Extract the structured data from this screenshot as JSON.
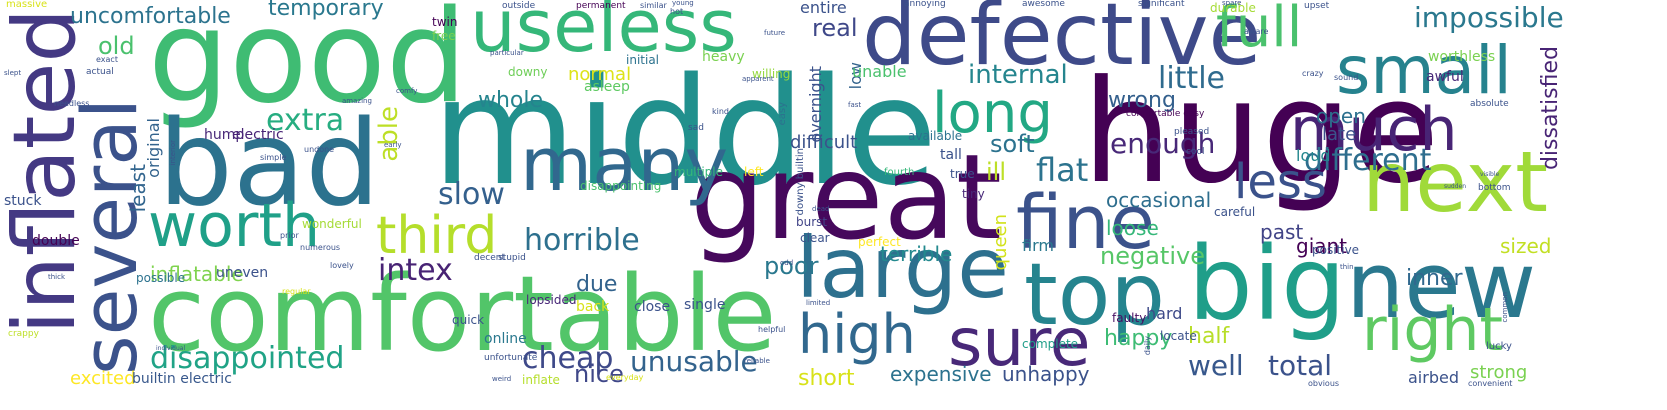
{
  "words": [
    {
      "text": "middle",
      "color": "#21908d"
    },
    {
      "text": "huge",
      "color": "#440154"
    },
    {
      "text": "good",
      "color": "#3fbc73"
    },
    {
      "text": "bad",
      "color": "#2c728e"
    },
    {
      "text": "great",
      "color": "#46085c"
    },
    {
      "text": "comfortable",
      "color": "#52c569"
    },
    {
      "text": "defective",
      "color": "#3e4a89"
    },
    {
      "text": "big",
      "color": "#1f9e89"
    },
    {
      "text": "new",
      "color": "#2a788e"
    },
    {
      "text": "top",
      "color": "#25848e"
    },
    {
      "text": "next",
      "color": "#a0da39"
    },
    {
      "text": "large",
      "color": "#2d708e"
    },
    {
      "text": "inflated",
      "color": "#443983"
    },
    {
      "text": "several",
      "color": "#3b528b"
    },
    {
      "text": "useless",
      "color": "#35b779"
    },
    {
      "text": "many",
      "color": "#31688e"
    },
    {
      "text": "fine",
      "color": "#3b528b"
    },
    {
      "text": "sure",
      "color": "#482878"
    },
    {
      "text": "small",
      "color": "#26828e"
    },
    {
      "text": "much",
      "color": "#482475"
    },
    {
      "text": "worth",
      "color": "#1fa088"
    },
    {
      "text": "long",
      "color": "#22a884"
    },
    {
      "text": "right",
      "color": "#5ec962"
    },
    {
      "text": "full",
      "color": "#4ac16d"
    },
    {
      "text": "high",
      "color": "#31688e"
    },
    {
      "text": "third",
      "color": "#b5de2b"
    },
    {
      "text": "less",
      "color": "#3b528b"
    },
    {
      "text": "disappointed",
      "color": "#20a386"
    },
    {
      "text": "horrible",
      "color": "#2d708e"
    },
    {
      "text": "different",
      "color": "#2e6e8e"
    },
    {
      "text": "cheap",
      "color": "#3e4989"
    },
    {
      "text": "unusable",
      "color": "#33638d"
    },
    {
      "text": "impossible",
      "color": "#2a788e"
    },
    {
      "text": "extra",
      "color": "#27ad81"
    },
    {
      "text": "flat",
      "color": "#2c738e"
    },
    {
      "text": "intex",
      "color": "#482374"
    },
    {
      "text": "total",
      "color": "#3b528b"
    },
    {
      "text": "well",
      "color": "#38588c"
    },
    {
      "text": "enough",
      "color": "#482878"
    },
    {
      "text": "internal",
      "color": "#25858e"
    },
    {
      "text": "little",
      "color": "#2f6b8e"
    },
    {
      "text": "uncomfortable",
      "color": "#2c738e"
    },
    {
      "text": "temporary",
      "color": "#2a788e"
    },
    {
      "text": "able",
      "color": "#bddf26"
    },
    {
      "text": "slow",
      "color": "#34608d"
    },
    {
      "text": "old",
      "color": "#4ac16d"
    },
    {
      "text": "real",
      "color": "#3f4889"
    },
    {
      "text": "soft",
      "color": "#2c728e"
    },
    {
      "text": "negative",
      "color": "#56c667"
    },
    {
      "text": "nice",
      "color": "#3f4788"
    },
    {
      "text": "poor",
      "color": "#2a788e"
    },
    {
      "text": "happy",
      "color": "#3dbc74"
    },
    {
      "text": "half",
      "color": "#b8de29"
    },
    {
      "text": "dissatisfied",
      "color": "#482475"
    },
    {
      "text": "wrong",
      "color": "#34608d"
    },
    {
      "text": "whole",
      "color": "#25848e"
    },
    {
      "text": "due",
      "color": "#33638d"
    },
    {
      "text": "inner",
      "color": "#31688e"
    },
    {
      "text": "short",
      "color": "#d8e219"
    },
    {
      "text": "expensive",
      "color": "#2c728e"
    },
    {
      "text": "unhappy",
      "color": "#3b528b"
    },
    {
      "text": "strong",
      "color": "#7ad151"
    },
    {
      "text": "excited",
      "color": "#fde725"
    },
    {
      "text": "sized",
      "color": "#c2df23"
    },
    {
      "text": "normal",
      "color": "#dde318"
    },
    {
      "text": "occasional",
      "color": "#2e6e8e"
    },
    {
      "text": "least",
      "color": "#32658e"
    },
    {
      "text": "inflatable",
      "color": "#7fd34e"
    },
    {
      "text": "loose",
      "color": "#35b779"
    },
    {
      "text": "past",
      "color": "#414487"
    },
    {
      "text": "giant",
      "color": "#440154"
    },
    {
      "text": "open",
      "color": "#2d708e"
    },
    {
      "text": "late",
      "color": "#3b528b"
    },
    {
      "text": "ill",
      "color": "#bddf26"
    },
    {
      "text": "queen",
      "color": "#d2e21b"
    },
    {
      "text": "terrible",
      "color": "#23898e"
    },
    {
      "text": "difficult",
      "color": "#3b528b"
    },
    {
      "text": "low",
      "color": "#33638d"
    },
    {
      "text": "unable",
      "color": "#4ac16d"
    },
    {
      "text": "overnight",
      "color": "#3b528b"
    },
    {
      "text": "loud",
      "color": "#24878e"
    },
    {
      "text": "firm",
      "color": "#2a788e"
    },
    {
      "text": "tall",
      "color": "#3b528b"
    },
    {
      "text": "hard",
      "color": "#3e4a89"
    },
    {
      "text": "faulty",
      "color": "#471063"
    },
    {
      "text": "airbed",
      "color": "#3b528b"
    },
    {
      "text": "entire",
      "color": "#3b528b"
    },
    {
      "text": "multiple",
      "color": "#35b779"
    },
    {
      "text": "left",
      "color": "#fde725"
    },
    {
      "text": "original",
      "color": "#33638d"
    },
    {
      "text": "hump",
      "color": "#482878"
    },
    {
      "text": "electric",
      "color": "#482475"
    },
    {
      "text": "builtin electric",
      "color": "#38588c"
    },
    {
      "text": "uneven",
      "color": "#3b528b"
    },
    {
      "text": "possible",
      "color": "#2c728e"
    },
    {
      "text": "double",
      "color": "#440154"
    },
    {
      "text": "stuck",
      "color": "#3b528b"
    },
    {
      "text": "wonderful",
      "color": "#a5db36"
    },
    {
      "text": "lopsided",
      "color": "#482878"
    },
    {
      "text": "back",
      "color": "#d8e219"
    },
    {
      "text": "close",
      "color": "#3b528b"
    },
    {
      "text": "single",
      "color": "#3b528b"
    },
    {
      "text": "online",
      "color": "#2a788e"
    },
    {
      "text": "quick",
      "color": "#3b528b"
    },
    {
      "text": "inflate",
      "color": "#b5de2b"
    },
    {
      "text": "complete",
      "color": "#1f9e89"
    },
    {
      "text": "twin",
      "color": "#440154"
    },
    {
      "text": "asleep",
      "color": "#5ec962"
    },
    {
      "text": "downy",
      "color": "#6ece58"
    },
    {
      "text": "heavy",
      "color": "#7ad151"
    },
    {
      "text": "initial",
      "color": "#2c728e"
    },
    {
      "text": "willing",
      "color": "#95d840"
    },
    {
      "text": "free",
      "color": "#7ad151"
    },
    {
      "text": "disappointing",
      "color": "#4ac16d"
    },
    {
      "text": "burst",
      "color": "#414487"
    },
    {
      "text": "clear",
      "color": "#3b528b"
    },
    {
      "text": "available",
      "color": "#2c728e"
    },
    {
      "text": "true",
      "color": "#3b528b"
    },
    {
      "text": "fourth",
      "color": "#35b779"
    },
    {
      "text": "tiny",
      "color": "#482878"
    },
    {
      "text": "perfect",
      "color": "#fde725"
    },
    {
      "text": "careful",
      "color": "#3b528b"
    },
    {
      "text": "positive",
      "color": "#3b528b"
    },
    {
      "text": "durable",
      "color": "#a5db36"
    },
    {
      "text": "worthless",
      "color": "#7ad151"
    },
    {
      "text": "awful",
      "color": "#482878"
    },
    {
      "text": "massive",
      "color": "#d8e219"
    },
    {
      "text": "permanent",
      "color": "#440154"
    },
    {
      "text": "outside",
      "color": "#3b528b"
    },
    {
      "text": "annoying",
      "color": "#3b528b"
    },
    {
      "text": "awesome",
      "color": "#3b528b"
    },
    {
      "text": "significant",
      "color": "#3b528b"
    },
    {
      "text": "upset",
      "color": "#3b528b"
    },
    {
      "text": "downy builtin",
      "color": "#3b528b"
    },
    {
      "text": "sad",
      "color": "#3b528b"
    },
    {
      "text": "easy",
      "color": "#2c728e"
    },
    {
      "text": "kind",
      "color": "#3b528b"
    },
    {
      "text": "comfortable easy",
      "color": "#440154"
    },
    {
      "text": "pleased",
      "color": "#3b528b"
    },
    {
      "text": "cool",
      "color": "#3b528b"
    },
    {
      "text": "absolute",
      "color": "#3b528b"
    },
    {
      "text": "crazy",
      "color": "#3b528b"
    },
    {
      "text": "sound",
      "color": "#3b528b"
    },
    {
      "text": "bottom",
      "color": "#3b528b"
    },
    {
      "text": "unfortunate",
      "color": "#3b528b"
    },
    {
      "text": "crappy",
      "color": "#bddf26"
    },
    {
      "text": "actual",
      "color": "#3b528b"
    },
    {
      "text": "exact",
      "color": "#3b528b"
    },
    {
      "text": "needless",
      "color": "#3b528b"
    },
    {
      "text": "amazing",
      "color": "#3b528b"
    },
    {
      "text": "simple",
      "color": "#3b528b"
    },
    {
      "text": "interior",
      "color": "#3b528b"
    },
    {
      "text": "comfy",
      "color": "#3b528b"
    },
    {
      "text": "undone",
      "color": "#3b528b"
    },
    {
      "text": "prior",
      "color": "#3b528b"
    },
    {
      "text": "numerous",
      "color": "#3b528b"
    },
    {
      "text": "lovely",
      "color": "#3b528b"
    },
    {
      "text": "regular",
      "color": "#d8e219"
    },
    {
      "text": "helpful",
      "color": "#3b528b"
    },
    {
      "text": "everyday",
      "color": "#d8e219"
    },
    {
      "text": "reliable",
      "color": "#3b528b"
    },
    {
      "text": "limited",
      "color": "#3b528b"
    },
    {
      "text": "decent",
      "color": "#3b528b"
    },
    {
      "text": "stupid",
      "color": "#3b528b"
    },
    {
      "text": "dead",
      "color": "#3b528b"
    },
    {
      "text": "locate",
      "color": "#3b528b"
    },
    {
      "text": "obvious",
      "color": "#3b528b"
    },
    {
      "text": "lucky",
      "color": "#3b528b"
    },
    {
      "text": "convenient",
      "color": "#3b528b"
    },
    {
      "text": "similar",
      "color": "#3b528b"
    },
    {
      "text": "hot",
      "color": "#3b528b"
    },
    {
      "text": "young",
      "color": "#3b528b"
    },
    {
      "text": "spare",
      "color": "#3b528b"
    },
    {
      "text": "aware",
      "color": "#3b528b"
    },
    {
      "text": "future",
      "color": "#3b528b"
    },
    {
      "text": "particular",
      "color": "#3b528b"
    },
    {
      "text": "apparent",
      "color": "#3b528b"
    },
    {
      "text": "fast",
      "color": "#3b528b"
    },
    {
      "text": "early",
      "color": "#3b528b"
    },
    {
      "text": "slept",
      "color": "#3b528b"
    },
    {
      "text": "daily",
      "color": "#3b528b"
    },
    {
      "text": "thin",
      "color": "#3b528b"
    },
    {
      "text": "visible",
      "color": "#3b528b"
    },
    {
      "text": "sudden",
      "color": "#3b528b"
    },
    {
      "text": "thick",
      "color": "#3b528b"
    },
    {
      "text": "individual",
      "color": "#3b528b"
    },
    {
      "text": "odd",
      "color": "#3b528b"
    },
    {
      "text": "common",
      "color": "#3b528b"
    },
    {
      "text": "weird",
      "color": "#3b528b"
    }
  ]
}
